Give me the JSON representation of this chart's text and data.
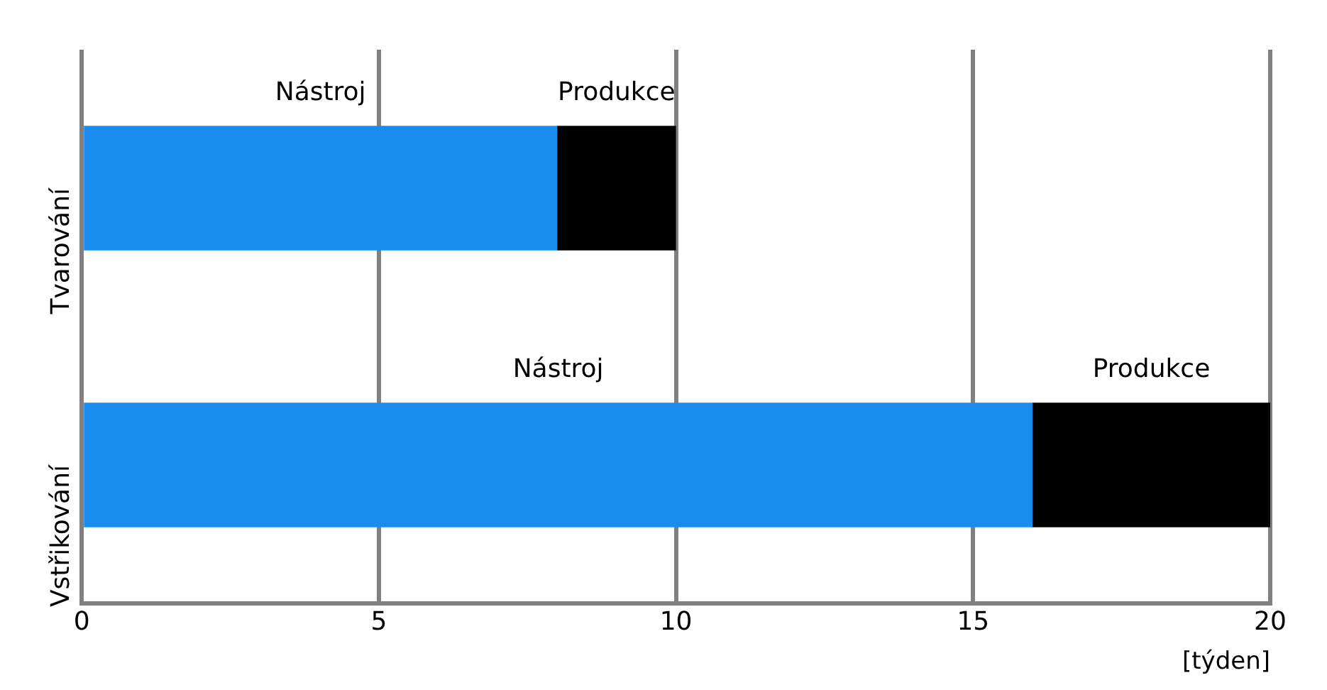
{
  "chart_data": {
    "type": "bar",
    "orientation": "horizontal",
    "stacked": true,
    "categories": [
      "Tvarování",
      "Vstřikování"
    ],
    "series": [
      {
        "name": "Nástroj",
        "color": "#1a8cf0",
        "values": [
          8,
          16
        ]
      },
      {
        "name": "Produkce",
        "color": "#000000",
        "values": [
          2,
          4
        ]
      }
    ],
    "xlim": [
      0,
      20
    ],
    "xticks": [
      0,
      5,
      10,
      15,
      20
    ],
    "xlabel": "[týden]",
    "grid": "x",
    "legend": false
  }
}
